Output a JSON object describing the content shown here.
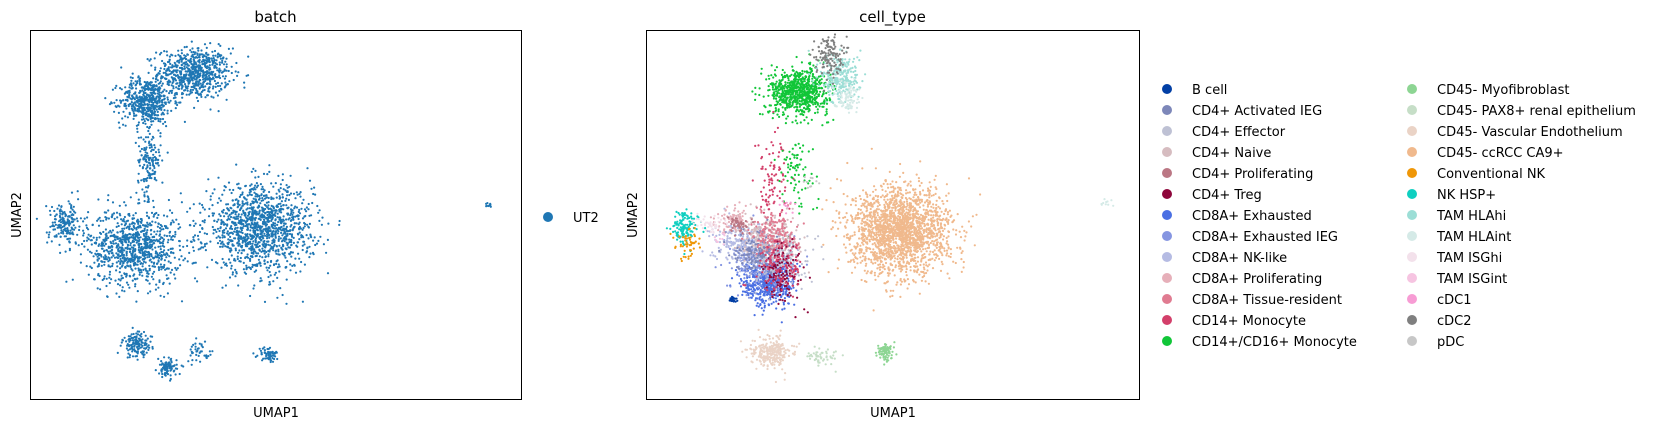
{
  "chart_data": [
    {
      "type": "scatter",
      "title": "batch",
      "xlabel": "UMAP1",
      "ylabel": "UMAP2",
      "grid": false,
      "ticks": false,
      "legend_position": "right",
      "legend": [
        {
          "label": "UT2",
          "color": "#1f77b4"
        }
      ],
      "clusters": [
        {
          "category": "UT2",
          "x": 5.0,
          "y": 13.8,
          "sx": 1.1,
          "sy": 1.0,
          "n": 700
        },
        {
          "category": "UT2",
          "x": 3.4,
          "y": 12.6,
          "sx": 0.8,
          "sy": 0.9,
          "n": 500
        },
        {
          "category": "UT2",
          "x": 3.5,
          "y": 10.0,
          "sx": 0.35,
          "sy": 1.4,
          "n": 160
        },
        {
          "category": "UT2",
          "x": 3.0,
          "y": 6.2,
          "sx": 1.4,
          "sy": 1.5,
          "n": 900
        },
        {
          "category": "UT2",
          "x": 0.7,
          "y": 7.2,
          "sx": 0.55,
          "sy": 0.9,
          "n": 180
        },
        {
          "category": "UT2",
          "x": 7.2,
          "y": 7.0,
          "sx": 1.6,
          "sy": 1.7,
          "n": 1300
        },
        {
          "category": "UT2",
          "x": 3.1,
          "y": 1.9,
          "sx": 0.45,
          "sy": 0.5,
          "n": 140
        },
        {
          "category": "UT2",
          "x": 4.1,
          "y": 0.9,
          "sx": 0.3,
          "sy": 0.35,
          "n": 90
        },
        {
          "category": "UT2",
          "x": 5.2,
          "y": 1.6,
          "sx": 0.4,
          "sy": 0.4,
          "n": 40
        },
        {
          "category": "UT2",
          "x": 7.5,
          "y": 1.5,
          "sx": 0.3,
          "sy": 0.3,
          "n": 60
        },
        {
          "category": "UT2",
          "x": 14.9,
          "y": 8.0,
          "sx": 0.15,
          "sy": 0.15,
          "n": 10
        }
      ]
    },
    {
      "type": "scatter",
      "title": "cell_type",
      "xlabel": "UMAP1",
      "ylabel": "UMAP2",
      "grid": false,
      "ticks": false,
      "legend_position": "right",
      "legend": [
        {
          "label": "B cell",
          "color": "#023fa5"
        },
        {
          "label": "CD4+ Activated IEG",
          "color": "#7d87b9"
        },
        {
          "label": "CD4+ Effector",
          "color": "#bec1d4"
        },
        {
          "label": "CD4+ Naive",
          "color": "#d6bcc0"
        },
        {
          "label": "CD4+ Proliferating",
          "color": "#bb7784"
        },
        {
          "label": "CD4+ Treg",
          "color": "#8e063b"
        },
        {
          "label": "CD8A+ Exhausted",
          "color": "#4a6fe3"
        },
        {
          "label": "CD8A+ Exhausted IEG",
          "color": "#8595e1"
        },
        {
          "label": "CD8A+ NK-like",
          "color": "#b5bbe3"
        },
        {
          "label": "CD8A+ Proliferating",
          "color": "#e6afb9"
        },
        {
          "label": "CD8A+ Tissue-resident",
          "color": "#e07b91"
        },
        {
          "label": "CD14+ Monocyte",
          "color": "#d33f6a"
        },
        {
          "label": "CD14+/CD16+ Monocyte",
          "color": "#11c638"
        },
        {
          "label": "CD45- Myofibroblast",
          "color": "#8dd593"
        },
        {
          "label": "CD45- PAX8+ renal epithelium",
          "color": "#c6dec7"
        },
        {
          "label": "CD45- Vascular Endothelium",
          "color": "#ead3c6"
        },
        {
          "label": "CD45- ccRCC CA9+",
          "color": "#f0b98d"
        },
        {
          "label": "Conventional NK",
          "color": "#ef9708"
        },
        {
          "label": "NK HSP+",
          "color": "#0fcfc0"
        },
        {
          "label": "TAM HLAhi",
          "color": "#9cded6"
        },
        {
          "label": "TAM HLAint",
          "color": "#d5eae7"
        },
        {
          "label": "TAM ISGhi",
          "color": "#f3e1eb"
        },
        {
          "label": "TAM ISGint",
          "color": "#f6c4e1"
        },
        {
          "label": "cDC1",
          "color": "#f79cd4"
        },
        {
          "label": "cDC2",
          "color": "#7f7f7f"
        },
        {
          "label": "pDC",
          "color": "#c7c7c7"
        }
      ],
      "clusters": [
        {
          "category": "CD14+/CD16+ Monocyte",
          "x": 4.6,
          "y": 13.0,
          "sx": 0.9,
          "sy": 0.9,
          "n": 750
        },
        {
          "category": "TAM HLAhi",
          "x": 6.0,
          "y": 13.6,
          "sx": 0.6,
          "sy": 1.0,
          "n": 280
        },
        {
          "category": "cDC2",
          "x": 5.6,
          "y": 14.6,
          "sx": 0.4,
          "sy": 0.8,
          "n": 130
        },
        {
          "category": "TAM HLAint",
          "x": 6.2,
          "y": 12.8,
          "sx": 0.4,
          "sy": 0.6,
          "n": 80
        },
        {
          "category": "CD14+ Monocyte",
          "x": 3.7,
          "y": 9.2,
          "sx": 0.5,
          "sy": 1.8,
          "n": 90
        },
        {
          "category": "CD14+/CD16+ Monocyte",
          "x": 4.5,
          "y": 9.4,
          "sx": 0.6,
          "sy": 1.6,
          "n": 80
        },
        {
          "category": "CD8A+ Exhausted",
          "x": 3.6,
          "y": 4.6,
          "sx": 0.8,
          "sy": 0.9,
          "n": 500
        },
        {
          "category": "CD8A+ Exhausted IEG",
          "x": 3.3,
          "y": 5.5,
          "sx": 0.9,
          "sy": 1.0,
          "n": 260
        },
        {
          "category": "CD8A+ NK-like",
          "x": 2.7,
          "y": 6.4,
          "sx": 0.9,
          "sy": 0.8,
          "n": 220
        },
        {
          "category": "CD4+ Naive",
          "x": 3.6,
          "y": 6.5,
          "sx": 0.9,
          "sy": 0.9,
          "n": 240
        },
        {
          "category": "CD4+ Effector",
          "x": 4.0,
          "y": 5.6,
          "sx": 0.8,
          "sy": 1.0,
          "n": 200
        },
        {
          "category": "CD4+ Activated IEG",
          "x": 3.2,
          "y": 6.0,
          "sx": 0.7,
          "sy": 0.8,
          "n": 150
        },
        {
          "category": "CD8A+ Tissue-resident",
          "x": 3.8,
          "y": 6.8,
          "sx": 0.7,
          "sy": 0.9,
          "n": 180
        },
        {
          "category": "CD8A+ Proliferating",
          "x": 2.4,
          "y": 7.4,
          "sx": 0.5,
          "sy": 0.5,
          "n": 80
        },
        {
          "category": "CD4+ Proliferating",
          "x": 2.6,
          "y": 7.2,
          "sx": 0.4,
          "sy": 0.4,
          "n": 50
        },
        {
          "category": "CD4+ Treg",
          "x": 4.1,
          "y": 5.0,
          "sx": 0.6,
          "sy": 1.2,
          "n": 120
        },
        {
          "category": "CD14+ Monocyte",
          "x": 4.0,
          "y": 5.4,
          "sx": 0.7,
          "sy": 1.0,
          "n": 120
        },
        {
          "category": "NK HSP+",
          "x": 0.8,
          "y": 7.0,
          "sx": 0.4,
          "sy": 0.7,
          "n": 130
        },
        {
          "category": "Conventional NK",
          "x": 0.9,
          "y": 6.4,
          "sx": 0.4,
          "sy": 0.6,
          "n": 50
        },
        {
          "category": "TAM ISGhi",
          "x": 1.6,
          "y": 7.2,
          "sx": 0.5,
          "sy": 0.5,
          "n": 40
        },
        {
          "category": "B cell",
          "x": 2.4,
          "y": 3.9,
          "sx": 0.12,
          "sy": 0.12,
          "n": 25
        },
        {
          "category": "CD45- ccRCC CA9+",
          "x": 8.0,
          "y": 6.9,
          "sx": 1.5,
          "sy": 1.7,
          "n": 2000
        },
        {
          "category": "CD45- Vascular Endothelium",
          "x": 3.7,
          "y": 1.6,
          "sx": 0.6,
          "sy": 0.6,
          "n": 260
        },
        {
          "category": "CD45- Myofibroblast",
          "x": 7.5,
          "y": 1.6,
          "sx": 0.25,
          "sy": 0.35,
          "n": 90
        },
        {
          "category": "CD45- PAX8+ renal epithelium",
          "x": 5.4,
          "y": 1.4,
          "sx": 0.5,
          "sy": 0.4,
          "n": 50
        },
        {
          "category": "TAM HLAint",
          "x": 14.9,
          "y": 8.1,
          "sx": 0.15,
          "sy": 0.15,
          "n": 10
        },
        {
          "category": "cDC1",
          "x": 4.2,
          "y": 8.0,
          "sx": 0.3,
          "sy": 0.3,
          "n": 10
        },
        {
          "category": "pDC",
          "x": 5.0,
          "y": 9.0,
          "sx": 0.3,
          "sy": 0.3,
          "n": 10
        },
        {
          "category": "TAM ISGint",
          "x": 2.0,
          "y": 6.5,
          "sx": 0.3,
          "sy": 0.3,
          "n": 10
        }
      ]
    }
  ]
}
